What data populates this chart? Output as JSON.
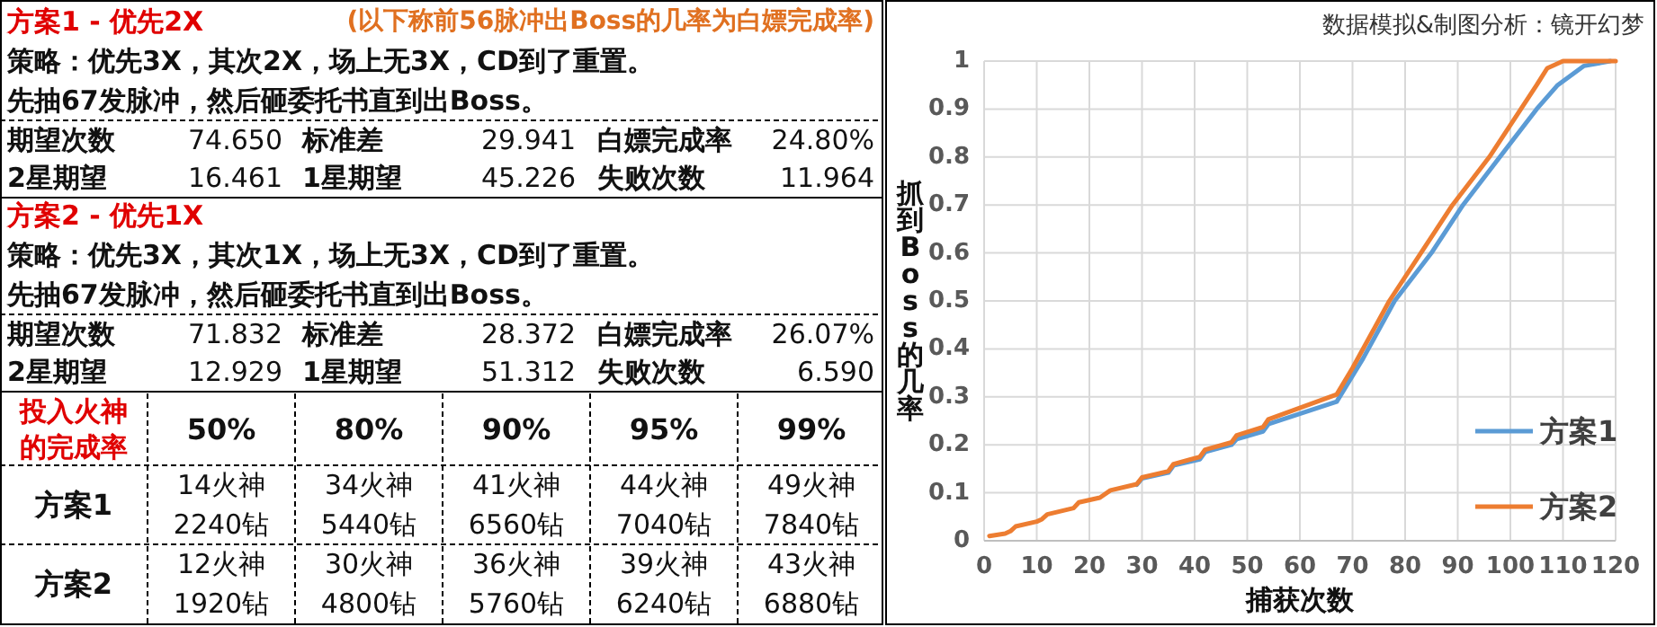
{
  "chart_data": [
    {
      "type": "other",
      "annotations": [
        "方案1 - 优先2X",
        "(以下称前56脉冲出Boss的几率为白嫖完成率)",
        "策略：优先3X，其次2X，场上无3X，CD到了重置。",
        "先抽67发脉冲，然后砸委托书直到出Boss。",
        "期望次数",
        "74.650",
        "标准差",
        "29.941",
        "白嫖完成率",
        "24.80%",
        "2星期望",
        "16.461",
        "1星期望",
        "45.226",
        "失败次数",
        "11.964",
        "方案2 - 优先1X",
        "策略：优先3X，其次1X，场上无3X，CD到了重置。",
        "先抽67发脉冲，然后砸委托书直到出Boss。",
        "期望次数",
        "71.832",
        "标准差",
        "28.372",
        "白嫖完成率",
        "26.07%",
        "2星期望",
        "12.929",
        "1星期望",
        "51.312",
        "失败次数",
        "6.590",
        "投入火神的完成率",
        "50%",
        "80%",
        "90%",
        "95%",
        "99%",
        "方案1",
        "14火神",
        "2240钻",
        "34火神",
        "5440钻",
        "41火神",
        "6560钻",
        "44火神",
        "7040钻",
        "49火神",
        "7840钻",
        "方案2",
        "12火神",
        "1920钻",
        "30火神",
        "4800钻",
        "36火神",
        "5760钻",
        "39火神",
        "6240钻",
        "43火神",
        "6880钻"
      ]
    },
    {
      "type": "line",
      "xlabel": "捕获次数",
      "ylabel": "抓到Boss的几率",
      "annotations": [
        "数据模拟&制图分析：镜开幻梦"
      ],
      "xlim": [
        0,
        120
      ],
      "xticks": [
        0,
        10,
        20,
        30,
        40,
        50,
        60,
        70,
        80,
        90,
        100,
        110,
        120
      ],
      "ylim": [
        0,
        1
      ],
      "yticks": [
        0,
        0.1,
        0.2,
        0.3,
        0.4,
        0.5,
        0.6,
        0.7,
        0.8,
        0.9,
        1
      ],
      "grid": true,
      "legend": "right",
      "marker": "none",
      "line_style": "solid",
      "series": [
        {
          "name": "方案1",
          "color": "#5b9bd5",
          "x": [
            29,
            30,
            35,
            36,
            41,
            42,
            47,
            48,
            53,
            54,
            67,
            72,
            78,
            85,
            91,
            98,
            105,
            109,
            114,
            119
          ],
          "values": [
            0.117,
            0.13,
            0.142,
            0.157,
            0.17,
            0.185,
            0.2,
            0.212,
            0.228,
            0.243,
            0.29,
            0.38,
            0.5,
            0.6,
            0.7,
            0.8,
            0.9,
            0.95,
            0.99,
            1
          ]
        },
        {
          "name": "方案2",
          "color": "#ed7d31",
          "x": [
            1,
            4,
            5,
            6,
            10,
            11,
            12,
            17,
            18,
            22,
            24,
            29,
            30,
            35,
            36,
            41,
            42,
            47,
            48,
            53,
            54,
            67,
            70,
            77,
            83,
            89,
            96,
            102,
            105,
            107,
            110,
            120
          ],
          "values": [
            0.01,
            0.015,
            0.02,
            0.03,
            0.04,
            0.045,
            0.055,
            0.068,
            0.08,
            0.09,
            0.105,
            0.118,
            0.132,
            0.145,
            0.16,
            0.175,
            0.19,
            0.205,
            0.22,
            0.237,
            0.253,
            0.305,
            0.36,
            0.5,
            0.6,
            0.7,
            0.8,
            0.9,
            0.95,
            0.985,
            1,
            1
          ]
        }
      ]
    }
  ]
}
